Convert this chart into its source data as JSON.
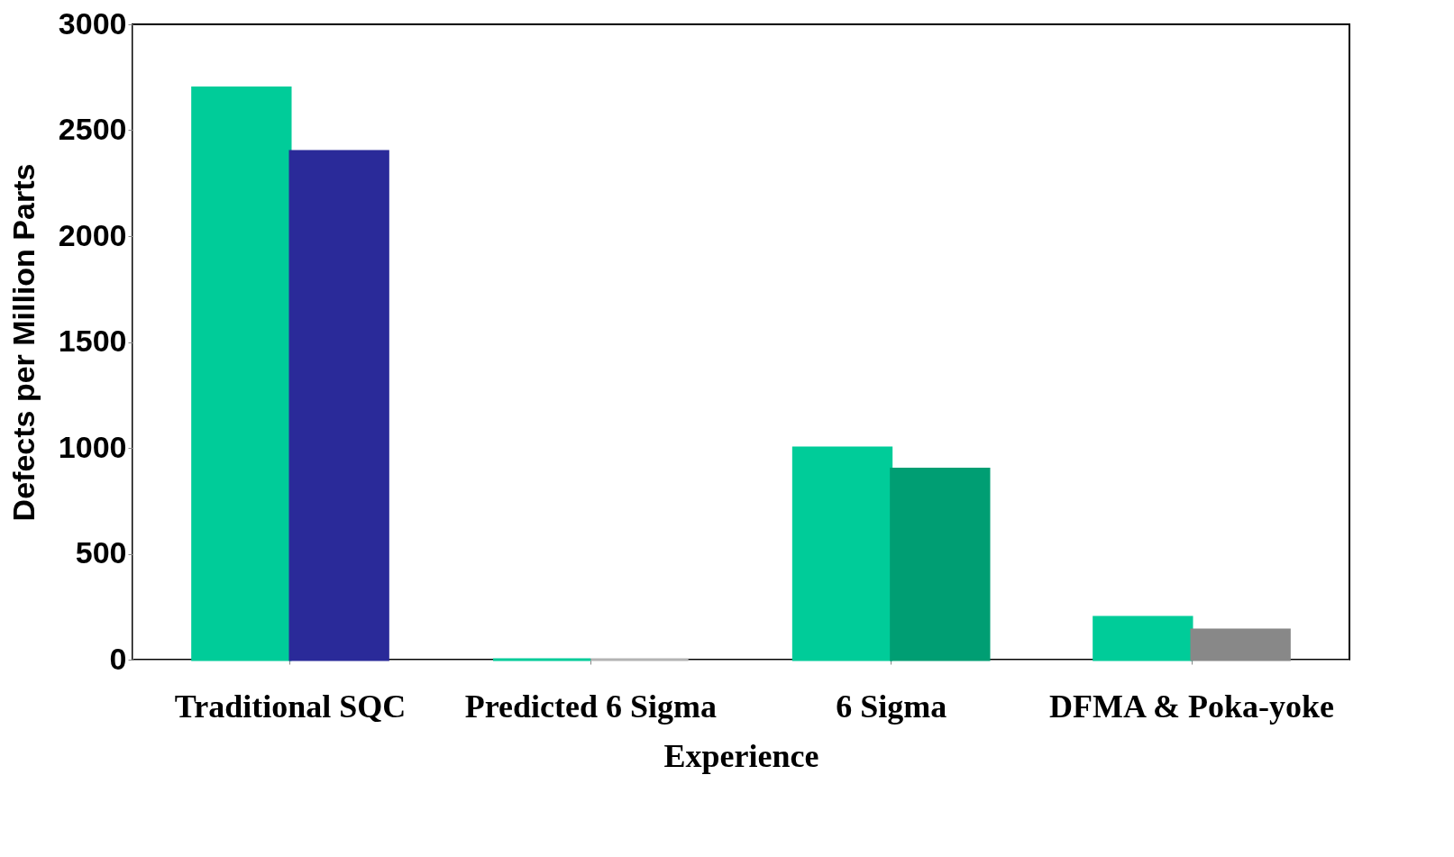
{
  "chart_data": {
    "type": "bar",
    "xlabel": "Experience",
    "ylabel": "Defects per Million Parts",
    "categories": [
      "Traditional SQC",
      "Predicted 6 Sigma",
      "6 Sigma",
      "DFMA & Poka-yoke"
    ],
    "series": [
      {
        "color": "#00cc99",
        "values": [
          2700,
          0,
          1000,
          200
        ]
      },
      {
        "colors": [
          "#2a2a99",
          "#b3b3b3",
          "#009e73",
          "#888888"
        ],
        "values": [
          2400,
          0,
          900,
          140
        ]
      }
    ],
    "ylim": [
      0,
      3000
    ],
    "yticks": [
      0,
      500,
      1000,
      1500,
      2000,
      2500,
      3000
    ],
    "grid": false,
    "legend": false
  }
}
